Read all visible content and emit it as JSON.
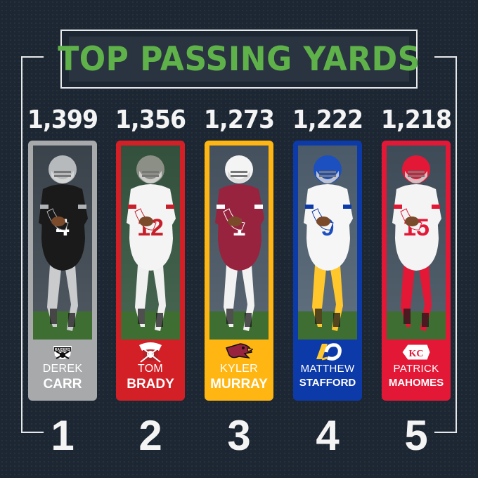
{
  "title": "TOP PASSING YARDS",
  "players": [
    {
      "rank": "1",
      "yards": "1,399",
      "first": "DEREK",
      "last": "CARR",
      "logo": "raiders-logo",
      "card_color": "#a7a9ab",
      "photo_bg": "#3a3f45",
      "jersey": "#1a1a1a",
      "jersey_trim": "#b0b3b6",
      "pants": "#c9cbcd",
      "helmet": "#b7babd",
      "number": "4",
      "num_color": "#ffffff",
      "first_color": "#ffffff",
      "last_color": "#ffffff"
    },
    {
      "rank": "2",
      "yards": "1,356",
      "first": "TOM",
      "last": "BRADY",
      "logo": "buccaneers-logo",
      "card_color": "#d32027",
      "photo_bg": "#2c5a2a",
      "jersey": "#f4f4f4",
      "jersey_trim": "#c8202a",
      "pants": "#f0f0f0",
      "helmet": "#8c8f86",
      "number": "12",
      "num_color": "#c8202a",
      "first_color": "#ffffff",
      "last_color": "#ffffff"
    },
    {
      "rank": "3",
      "yards": "1,273",
      "first": "KYLER",
      "last": "MURRAY",
      "logo": "cardinals-logo",
      "card_color": "#ffb612",
      "photo_bg": "#4d5a66",
      "jersey": "#97233f",
      "jersey_trim": "#ffffff",
      "pants": "#f2f2f2",
      "helmet": "#f4f4f4",
      "number": "1",
      "num_color": "#ffffff",
      "first_color": "#ffffff",
      "last_color": "#ffffff"
    },
    {
      "rank": "4",
      "yards": "1,222",
      "first": "MATTHEW",
      "last": "STAFFORD",
      "logo": "rams-logo",
      "card_color": "#0d3aa9",
      "photo_bg": "#5a6b7c",
      "jersey": "#f6f6f6",
      "jersey_trim": "#0d3aa9",
      "pants": "#ffc72c",
      "helmet": "#1c4fc0",
      "number": "9",
      "num_color": "#1c4fc0",
      "first_color": "#ffffff",
      "last_color": "#ffffff"
    },
    {
      "rank": "5",
      "yards": "1,218",
      "first": "PATRICK",
      "last": "MAHOMES",
      "logo": "chiefs-logo",
      "card_color": "#e31837",
      "photo_bg": "#42505d",
      "jersey": "#f4f4f4",
      "jersey_trim": "#e31837",
      "pants": "#e31837",
      "helmet": "#e31837",
      "number": "15",
      "num_color": "#e31837",
      "first_color": "#ffffff",
      "last_color": "#ffffff"
    }
  ]
}
